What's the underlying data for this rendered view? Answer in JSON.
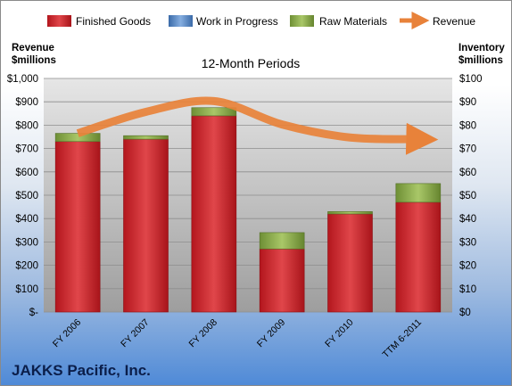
{
  "chart_data": {
    "type": "bar",
    "subtitle": "12-Month Periods",
    "company": "JAKKS Pacific, Inc.",
    "left_axis": {
      "title_line1": "Revenue",
      "title_line2": "$millions",
      "range": [
        0,
        1000
      ],
      "ticks": [
        "$-",
        "$100",
        "$200",
        "$300",
        "$400",
        "$500",
        "$600",
        "$700",
        "$800",
        "$900",
        "$1,000"
      ]
    },
    "right_axis": {
      "title_line1": "Inventory",
      "title_line2": "$millions",
      "range": [
        0,
        100
      ],
      "ticks": [
        "$0",
        "$10",
        "$20",
        "$30",
        "$40",
        "$50",
        "$60",
        "$70",
        "$80",
        "$90",
        "$100"
      ]
    },
    "categories": [
      "FY 2006",
      "FY 2007",
      "FY 2008",
      "FY 2009",
      "FY 2010",
      "TTM 6-2011"
    ],
    "series": [
      {
        "name": "Finished Goods",
        "color": "#c0262c",
        "axis": "right",
        "values": [
          73,
          74,
          84,
          27,
          42,
          47
        ]
      },
      {
        "name": "Work in Progress",
        "color": "#4f81bd",
        "axis": "right",
        "values": [
          0,
          0,
          0,
          0,
          0,
          0
        ]
      },
      {
        "name": "Raw Materials",
        "color": "#8fb04a",
        "axis": "right",
        "values": [
          3.5,
          1.5,
          3.5,
          7,
          1,
          8
        ]
      },
      {
        "name": "Revenue",
        "color": "#e8823a",
        "axis": "left",
        "type": "line",
        "values": [
          765,
          857,
          903,
          803,
          747,
          740
        ]
      }
    ],
    "legend_position": "top",
    "grid": true
  }
}
